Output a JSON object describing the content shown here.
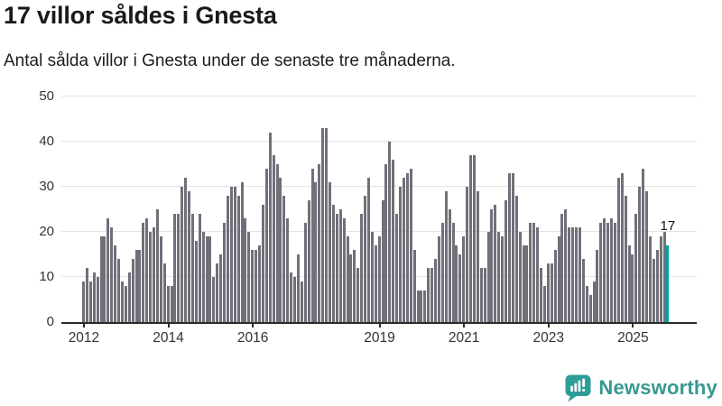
{
  "header": {
    "title": "17 villor såldes i Gnesta",
    "subtitle": "Antal sålda villor i Gnesta under de senaste tre månaderna."
  },
  "chart_data": {
    "type": "bar",
    "title": "17 villor såldes i Gnesta",
    "subtitle": "Antal sålda villor i Gnesta under de senaste tre månaderna.",
    "xlabel": "",
    "ylabel": "",
    "ylim": [
      0,
      50
    ],
    "grid": "horizontal",
    "legend": "none",
    "y_ticks": [
      0,
      10,
      20,
      30,
      40,
      50
    ],
    "x_tick_years": [
      "2012",
      "2014",
      "2016",
      "2019",
      "2021",
      "2023",
      "2025"
    ],
    "x_start_year": 2012,
    "values": [
      9,
      12,
      9,
      11,
      10,
      19,
      19,
      23,
      21,
      17,
      14,
      9,
      8,
      11,
      14,
      16,
      16,
      22,
      23,
      20,
      21,
      25,
      19,
      13,
      8,
      8,
      24,
      24,
      30,
      32,
      29,
      24,
      18,
      24,
      20,
      19,
      19,
      10,
      13,
      15,
      22,
      28,
      30,
      30,
      28,
      31,
      23,
      20,
      16,
      16,
      17,
      26,
      34,
      42,
      37,
      35,
      32,
      28,
      23,
      11,
      10,
      15,
      9,
      22,
      27,
      34,
      31,
      35,
      43,
      43,
      31,
      26,
      24,
      25,
      23,
      19,
      15,
      16,
      12,
      24,
      28,
      32,
      20,
      17,
      19,
      27,
      35,
      40,
      36,
      24,
      30,
      32,
      33,
      34,
      16,
      7,
      7,
      7,
      12,
      12,
      14,
      19,
      22,
      29,
      25,
      22,
      17,
      15,
      19,
      30,
      37,
      37,
      29,
      12,
      12,
      20,
      25,
      26,
      20,
      19,
      27,
      33,
      33,
      28,
      20,
      17,
      17,
      22,
      22,
      21,
      12,
      8,
      13,
      13,
      16,
      19,
      24,
      25,
      21,
      21,
      21,
      21,
      14,
      8,
      6,
      9,
      16,
      22,
      23,
      22,
      23,
      22,
      32,
      33,
      28,
      17,
      15,
      24,
      30,
      34,
      29,
      19,
      14,
      16,
      19,
      20,
      17
    ],
    "highlight": {
      "index": 166,
      "label": "17",
      "color": "#00A3A0"
    },
    "bar_color": "#70707A",
    "axis_color": "#2B2B2B",
    "grid_color": "#E3E3E3",
    "label_color": "#333333"
  },
  "footer": {
    "brand": "Newsworthy",
    "brand_color": "#38998F",
    "icon_color": "#2D9D97",
    "icon": "newsworthy-chart-bubble-icon"
  }
}
